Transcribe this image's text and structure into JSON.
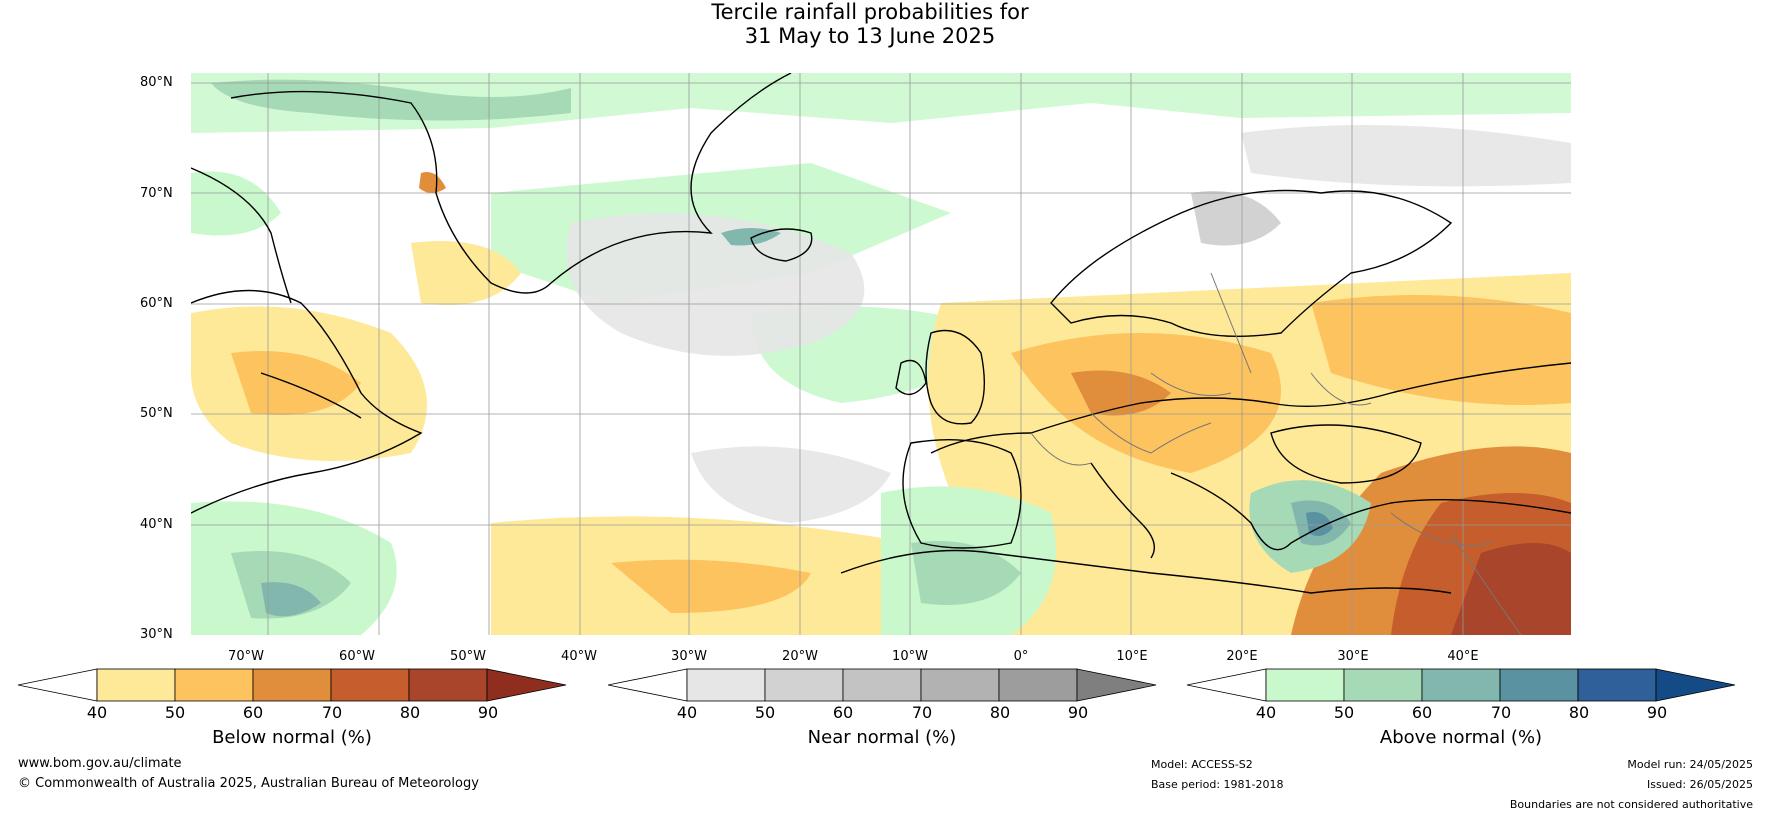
{
  "title_line1": "Tercile rainfall probabilities for",
  "title_line2": "31 May to 13 June 2025",
  "map": {
    "lat_labels": [
      "80°N",
      "70°N",
      "60°N",
      "50°N",
      "40°N",
      "30°N"
    ],
    "lon_labels": [
      "70°W",
      "60°W",
      "50°W",
      "40°W",
      "30°W",
      "20°W",
      "10°W",
      "0°",
      "10°E",
      "20°E",
      "30°E",
      "40°E"
    ],
    "extent": {
      "lon_min": -77,
      "lon_max": 48,
      "lat_min": 30,
      "lat_max": 81
    },
    "gridlines": true
  },
  "colorbars": [
    {
      "title": "Below normal (%)",
      "ticks": [
        "40",
        "50",
        "60",
        "70",
        "80",
        "90"
      ],
      "colors": [
        "#ffffff",
        "#fee999",
        "#fdc35f",
        "#e08d3c",
        "#c55d2c",
        "#a8452a",
        "#8f2e1e"
      ]
    },
    {
      "title": "Near normal (%)",
      "ticks": [
        "40",
        "50",
        "60",
        "70",
        "80",
        "90"
      ],
      "colors": [
        "#ffffff",
        "#e6e6e6",
        "#d2d2d2",
        "#c3c3c3",
        "#b2b2b2",
        "#9d9d9d",
        "#7f7f7f"
      ]
    },
    {
      "title": "Above normal (%)",
      "ticks": [
        "40",
        "50",
        "60",
        "70",
        "80",
        "90"
      ],
      "colors": [
        "#ffffff",
        "#c8f8cc",
        "#a6d9b6",
        "#82b7ad",
        "#5b92a2",
        "#30609a",
        "#144b86"
      ]
    }
  ],
  "footer": {
    "website": "www.bom.gov.au/climate",
    "copyright": "© Commonwealth of Australia 2025, Australian Bureau of Meteorology",
    "model": "Model: ACCESS-S2",
    "base_period": "Base period: 1981-2018",
    "model_run": "Model run: 24/05/2025",
    "issued": "Issued: 26/05/2025",
    "disclaimer": "Boundaries are not considered authoritative"
  }
}
